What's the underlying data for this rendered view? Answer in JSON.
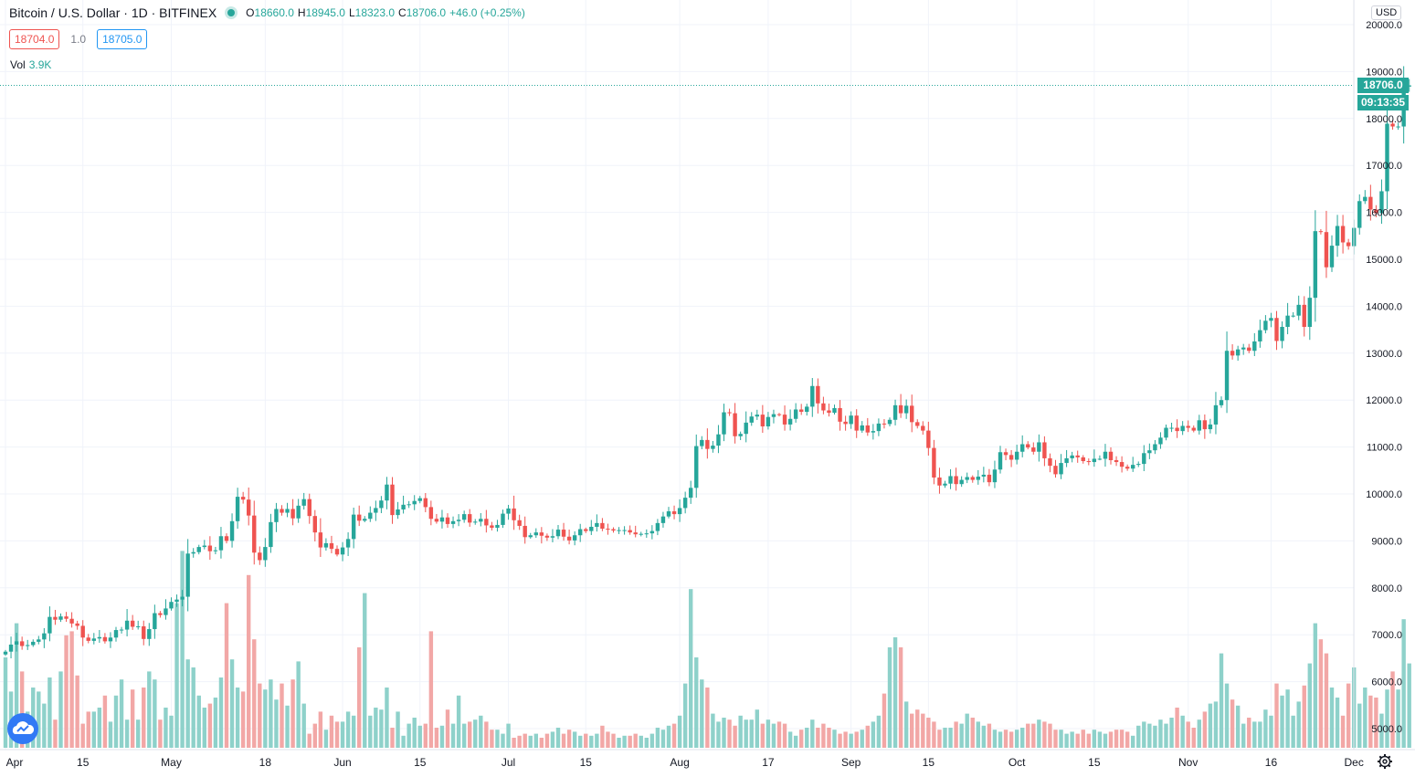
{
  "header": {
    "symbol": "Bitcoin / U.S. Dollar · 1D · BITFINEX",
    "open_label": "O",
    "open": "18660.0",
    "high_label": "H",
    "high": "18945.0",
    "low_label": "L",
    "low": "18323.0",
    "close_label": "C",
    "close": "18706.0",
    "change": "+46.0 (+0.25%)"
  },
  "quotes": {
    "bid": "18704.0",
    "spread": "1.0",
    "ask": "18705.0"
  },
  "volume_legend": {
    "label": "Vol",
    "value": "3.9K"
  },
  "currency": "USD",
  "last_price": {
    "price": "18706.0",
    "countdown": "09:13:35"
  },
  "colors": {
    "up": "#26a69a",
    "down": "#ef5350",
    "vol_up": "#8ed1ca",
    "vol_down": "#f2a7a6",
    "grid": "#f0f3fa",
    "axis_text": "#131722"
  },
  "chart_data": {
    "type": "candlestick",
    "title": "Bitcoin / U.S. Dollar · 1D · BITFINEX",
    "ylim": [
      4800,
      20200
    ],
    "y_ticks": [
      "5000.0",
      "6000.0",
      "7000.0",
      "8000.0",
      "9000.0",
      "10000.0",
      "11000.0",
      "12000.0",
      "13000.0",
      "14000.0",
      "15000.0",
      "16000.0",
      "17000.0",
      "18000.0",
      "19000.0",
      "20000.0"
    ],
    "y_tick_values": [
      5000,
      6000,
      7000,
      8000,
      9000,
      10000,
      11000,
      12000,
      13000,
      14000,
      15000,
      16000,
      17000,
      18000,
      19000,
      20000
    ],
    "x_tick_labels": [
      "Apr",
      "15",
      "May",
      "18",
      "Jun",
      "15",
      "Jul",
      "15",
      "Aug",
      "17",
      "Sep",
      "15",
      "Oct",
      "15",
      "Nov",
      "16",
      "Dec"
    ],
    "x_tick_day_index": [
      0,
      14,
      30,
      47,
      61,
      75,
      91,
      105,
      122,
      138,
      153,
      167,
      183,
      197,
      214,
      229,
      244
    ],
    "volume_max": 1.0,
    "closes": [
      6640,
      6790,
      6860,
      6760,
      6780,
      6850,
      6900,
      7030,
      7380,
      7320,
      7390,
      7340,
      7240,
      7190,
      6940,
      6870,
      6920,
      6950,
      6860,
      6940,
      7100,
      7110,
      7300,
      7170,
      7180,
      6910,
      7120,
      7460,
      7420,
      7560,
      7700,
      7750,
      7810,
      8730,
      8760,
      8870,
      8900,
      8780,
      8800,
      9100,
      9000,
      9420,
      9940,
      9880,
      9540,
      8750,
      8590,
      8870,
      9400,
      9680,
      9600,
      9680,
      9480,
      9750,
      9890,
      9530,
      9180,
      8860,
      8950,
      8830,
      8710,
      8860,
      9040,
      9560,
      9430,
      9470,
      9600,
      9700,
      9860,
      10200,
      9550,
      9670,
      9770,
      9780,
      9850,
      9910,
      9720,
      9470,
      9410,
      9500,
      9360,
      9420,
      9450,
      9570,
      9390,
      9410,
      9470,
      9330,
      9280,
      9340,
      9580,
      9690,
      9440,
      9320,
      9080,
      9120,
      9180,
      9110,
      9070,
      9100,
      9240,
      9090,
      9010,
      9120,
      9250,
      9210,
      9300,
      9380,
      9260,
      9250,
      9220,
      9230,
      9230,
      9180,
      9140,
      9150,
      9160,
      9210,
      9380,
      9520,
      9630,
      9570,
      9700,
      9920,
      10130,
      11020,
      11150,
      10960,
      11030,
      11270,
      11740,
      11720,
      11230,
      11280,
      11520,
      11650,
      11690,
      11440,
      11640,
      11700,
      11690,
      11480,
      11600,
      11800,
      11750,
      11860,
      12300,
      11930,
      11780,
      11730,
      11830,
      11540,
      11490,
      11670,
      11350,
      11460,
      11310,
      11340,
      11500,
      11490,
      11580,
      11890,
      11720,
      11880,
      11530,
      11450,
      11350,
      10980,
      10350,
      10180,
      10220,
      10380,
      10210,
      10300,
      10360,
      10300,
      10370,
      10410,
      10250,
      10520,
      10890,
      10830,
      10730,
      10900,
      11060,
      10990,
      10900,
      11100,
      10760,
      10600,
      10420,
      10660,
      10760,
      10820,
      10780,
      10700,
      10680,
      10750,
      10750,
      10900,
      10720,
      10680,
      10580,
      10540,
      10620,
      10640,
      10870,
      10930,
      11060,
      11200,
      11410,
      11410,
      11340,
      11450,
      11410,
      11350,
      11570,
      11380,
      11480,
      11890,
      12000,
      13050,
      12950,
      13080,
      13120,
      13050,
      13250,
      13490,
      13690,
      13750,
      13260,
      13560,
      13800,
      13800,
      14030,
      13560,
      14180,
      15600,
      15580,
      14830,
      15290,
      15710,
      15360,
      15280,
      15670,
      16240,
      16330,
      16060,
      15980,
      16450,
      17890,
      17830,
      17830,
      18680,
      18706
    ],
    "volumes": [
      0.45,
      0.28,
      0.62,
      0.38,
      0.18,
      0.3,
      0.28,
      0.22,
      0.35,
      0.14,
      0.38,
      0.56,
      0.58,
      0.36,
      0.12,
      0.18,
      0.18,
      0.2,
      0.26,
      0.13,
      0.26,
      0.34,
      0.14,
      0.29,
      0.14,
      0.3,
      0.38,
      0.34,
      0.14,
      0.2,
      0.16,
      0.72,
      0.98,
      0.44,
      0.4,
      0.26,
      0.2,
      0.22,
      0.25,
      0.35,
      0.72,
      0.44,
      0.3,
      0.28,
      0.86,
      0.54,
      0.32,
      0.29,
      0.34,
      0.24,
      0.32,
      0.21,
      0.34,
      0.43,
      0.22,
      0.07,
      0.12,
      0.18,
      0.09,
      0.16,
      0.13,
      0.13,
      0.18,
      0.16,
      0.5,
      0.77,
      0.16,
      0.2,
      0.19,
      0.3,
      0.1,
      0.18,
      0.06,
      0.12,
      0.15,
      0.11,
      0.12,
      0.58,
      0.1,
      0.11,
      0.19,
      0.12,
      0.26,
      0.12,
      0.13,
      0.14,
      0.16,
      0.13,
      0.09,
      0.09,
      0.07,
      0.12,
      0.05,
      0.06,
      0.07,
      0.06,
      0.07,
      0.05,
      0.07,
      0.08,
      0.1,
      0.07,
      0.09,
      0.08,
      0.06,
      0.07,
      0.06,
      0.07,
      0.11,
      0.08,
      0.07,
      0.05,
      0.06,
      0.06,
      0.07,
      0.06,
      0.05,
      0.07,
      0.1,
      0.09,
      0.11,
      0.12,
      0.16,
      0.32,
      0.79,
      0.45,
      0.34,
      0.3,
      0.17,
      0.13,
      0.15,
      0.14,
      0.11,
      0.16,
      0.14,
      0.14,
      0.19,
      0.12,
      0.14,
      0.12,
      0.13,
      0.12,
      0.08,
      0.06,
      0.09,
      0.1,
      0.14,
      0.1,
      0.12,
      0.1,
      0.09,
      0.07,
      0.08,
      0.07,
      0.08,
      0.09,
      0.11,
      0.13,
      0.16,
      0.27,
      0.5,
      0.55,
      0.5,
      0.23,
      0.17,
      0.19,
      0.17,
      0.15,
      0.13,
      0.09,
      0.1,
      0.1,
      0.13,
      0.12,
      0.17,
      0.15,
      0.13,
      0.11,
      0.12,
      0.09,
      0.08,
      0.09,
      0.08,
      0.09,
      0.1,
      0.12,
      0.12,
      0.14,
      0.13,
      0.12,
      0.09,
      0.09,
      0.07,
      0.08,
      0.07,
      0.09,
      0.07,
      0.09,
      0.08,
      0.07,
      0.08,
      0.09,
      0.09,
      0.08,
      0.06,
      0.11,
      0.13,
      0.12,
      0.11,
      0.14,
      0.12,
      0.15,
      0.2,
      0.16,
      0.13,
      0.1,
      0.14,
      0.18,
      0.22,
      0.23,
      0.47,
      0.32,
      0.24,
      0.21,
      0.12,
      0.15,
      0.13,
      0.13,
      0.19,
      0.16,
      0.32,
      0.26,
      0.29,
      0.16,
      0.23,
      0.31,
      0.42,
      0.62,
      0.54,
      0.47,
      0.3,
      0.25,
      0.16,
      0.32,
      0.4,
      0.22,
      0.3,
      0.26,
      0.25,
      0.17,
      0.29,
      0.38,
      0.29,
      0.64,
      0.42,
      0.18
    ]
  },
  "icons": {
    "logo": "tradingview-cloud-icon",
    "settings": "gear-icon",
    "status": "market-open-dot-icon"
  }
}
